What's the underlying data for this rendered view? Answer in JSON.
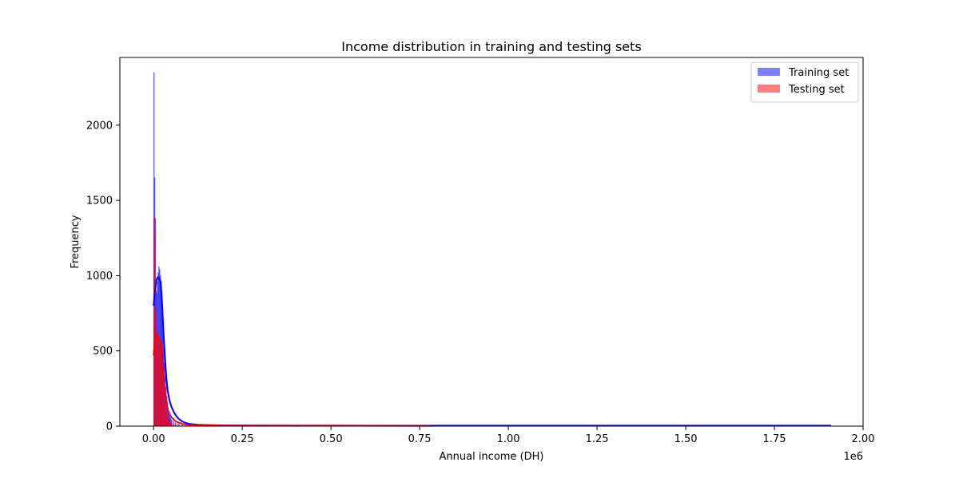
{
  "chart_data": {
    "type": "histogram",
    "title": "Income distribution in training and testing sets",
    "xlabel": "Annual income (DH)",
    "ylabel": "Frequency",
    "x_offset_label": "1e6",
    "xlim": [
      -0.095,
      2.0
    ],
    "ylim": [
      0,
      2450
    ],
    "x_ticks": [
      0.0,
      0.25,
      0.5,
      0.75,
      1.0,
      1.25,
      1.5,
      1.75,
      2.0
    ],
    "x_tick_labels": [
      "0.00",
      "0.25",
      "0.50",
      "0.75",
      "1.00",
      "1.25",
      "1.50",
      "1.75",
      "2.00"
    ],
    "y_ticks": [
      0,
      500,
      1000,
      1500,
      2000
    ],
    "y_tick_labels": [
      "0",
      "500",
      "1000",
      "1500",
      "2000"
    ],
    "legend_position": "top-right",
    "grid": false,
    "series": [
      {
        "name": "Training set",
        "bar_color": "#0000ff",
        "line_color": "#0000ff",
        "bars": [
          [
            0.0,
            2350
          ],
          [
            0.002,
            1650
          ],
          [
            0.004,
            1380
          ],
          [
            0.006,
            900
          ],
          [
            0.008,
            880
          ],
          [
            0.01,
            960
          ],
          [
            0.012,
            1020
          ],
          [
            0.014,
            1060
          ],
          [
            0.016,
            1040
          ],
          [
            0.018,
            1000
          ],
          [
            0.02,
            960
          ],
          [
            0.022,
            900
          ],
          [
            0.024,
            780
          ],
          [
            0.026,
            620
          ],
          [
            0.028,
            520
          ],
          [
            0.03,
            420
          ],
          [
            0.032,
            330
          ],
          [
            0.034,
            260
          ],
          [
            0.036,
            200
          ],
          [
            0.038,
            160
          ],
          [
            0.04,
            120
          ],
          [
            0.042,
            95
          ],
          [
            0.044,
            75
          ],
          [
            0.046,
            60
          ],
          [
            0.048,
            48
          ],
          [
            0.05,
            38
          ],
          [
            0.055,
            30
          ],
          [
            0.06,
            24
          ],
          [
            0.065,
            18
          ],
          [
            0.07,
            14
          ],
          [
            0.08,
            11
          ],
          [
            0.09,
            8
          ],
          [
            0.1,
            7
          ],
          [
            0.12,
            5
          ],
          [
            0.15,
            4
          ],
          [
            0.2,
            3
          ]
        ],
        "kde": [
          [
            0.0,
            800
          ],
          [
            0.004,
            900
          ],
          [
            0.008,
            970
          ],
          [
            0.012,
            990
          ],
          [
            0.016,
            980
          ],
          [
            0.02,
            960
          ],
          [
            0.024,
            820
          ],
          [
            0.028,
            620
          ],
          [
            0.032,
            460
          ],
          [
            0.036,
            320
          ],
          [
            0.04,
            230
          ],
          [
            0.045,
            170
          ],
          [
            0.05,
            130
          ],
          [
            0.06,
            80
          ],
          [
            0.07,
            50
          ],
          [
            0.08,
            32
          ],
          [
            0.09,
            22
          ],
          [
            0.1,
            15
          ],
          [
            0.125,
            9
          ],
          [
            0.15,
            7
          ],
          [
            0.2,
            5
          ],
          [
            0.3,
            4
          ],
          [
            0.5,
            3
          ],
          [
            0.75,
            3
          ],
          [
            1.0,
            3
          ],
          [
            1.25,
            3
          ],
          [
            1.5,
            3
          ],
          [
            1.75,
            3
          ],
          [
            1.91,
            3
          ]
        ]
      },
      {
        "name": "Testing set",
        "bar_color": "#ff0000",
        "line_color": "#ff0000",
        "bars": [
          [
            0.0,
            1390
          ],
          [
            0.002,
            1230
          ],
          [
            0.004,
            760
          ],
          [
            0.006,
            620
          ],
          [
            0.008,
            600
          ],
          [
            0.01,
            640
          ],
          [
            0.012,
            610
          ],
          [
            0.014,
            590
          ],
          [
            0.016,
            560
          ],
          [
            0.018,
            540
          ],
          [
            0.02,
            520
          ],
          [
            0.022,
            470
          ],
          [
            0.024,
            400
          ],
          [
            0.026,
            320
          ],
          [
            0.028,
            250
          ],
          [
            0.03,
            190
          ],
          [
            0.032,
            150
          ],
          [
            0.034,
            115
          ],
          [
            0.036,
            90
          ],
          [
            0.038,
            70
          ],
          [
            0.04,
            55
          ],
          [
            0.042,
            44
          ],
          [
            0.044,
            35
          ],
          [
            0.046,
            28
          ],
          [
            0.048,
            22
          ],
          [
            0.05,
            18
          ],
          [
            0.055,
            14
          ],
          [
            0.06,
            10
          ],
          [
            0.07,
            8
          ],
          [
            0.08,
            6
          ],
          [
            0.1,
            5
          ],
          [
            0.12,
            4
          ],
          [
            0.15,
            3
          ],
          [
            0.2,
            2
          ]
        ],
        "kde": [
          [
            0.0,
            470
          ],
          [
            0.004,
            580
          ],
          [
            0.008,
            610
          ],
          [
            0.012,
            600
          ],
          [
            0.016,
            580
          ],
          [
            0.02,
            560
          ],
          [
            0.024,
            440
          ],
          [
            0.028,
            320
          ],
          [
            0.032,
            230
          ],
          [
            0.036,
            160
          ],
          [
            0.04,
            110
          ],
          [
            0.045,
            80
          ],
          [
            0.05,
            60
          ],
          [
            0.06,
            36
          ],
          [
            0.07,
            24
          ],
          [
            0.08,
            16
          ],
          [
            0.09,
            11
          ],
          [
            0.1,
            8
          ],
          [
            0.125,
            6
          ],
          [
            0.15,
            5
          ],
          [
            0.2,
            4
          ],
          [
            0.3,
            3
          ],
          [
            0.5,
            3
          ],
          [
            0.75,
            2
          ],
          [
            0.78,
            2
          ]
        ]
      }
    ]
  }
}
